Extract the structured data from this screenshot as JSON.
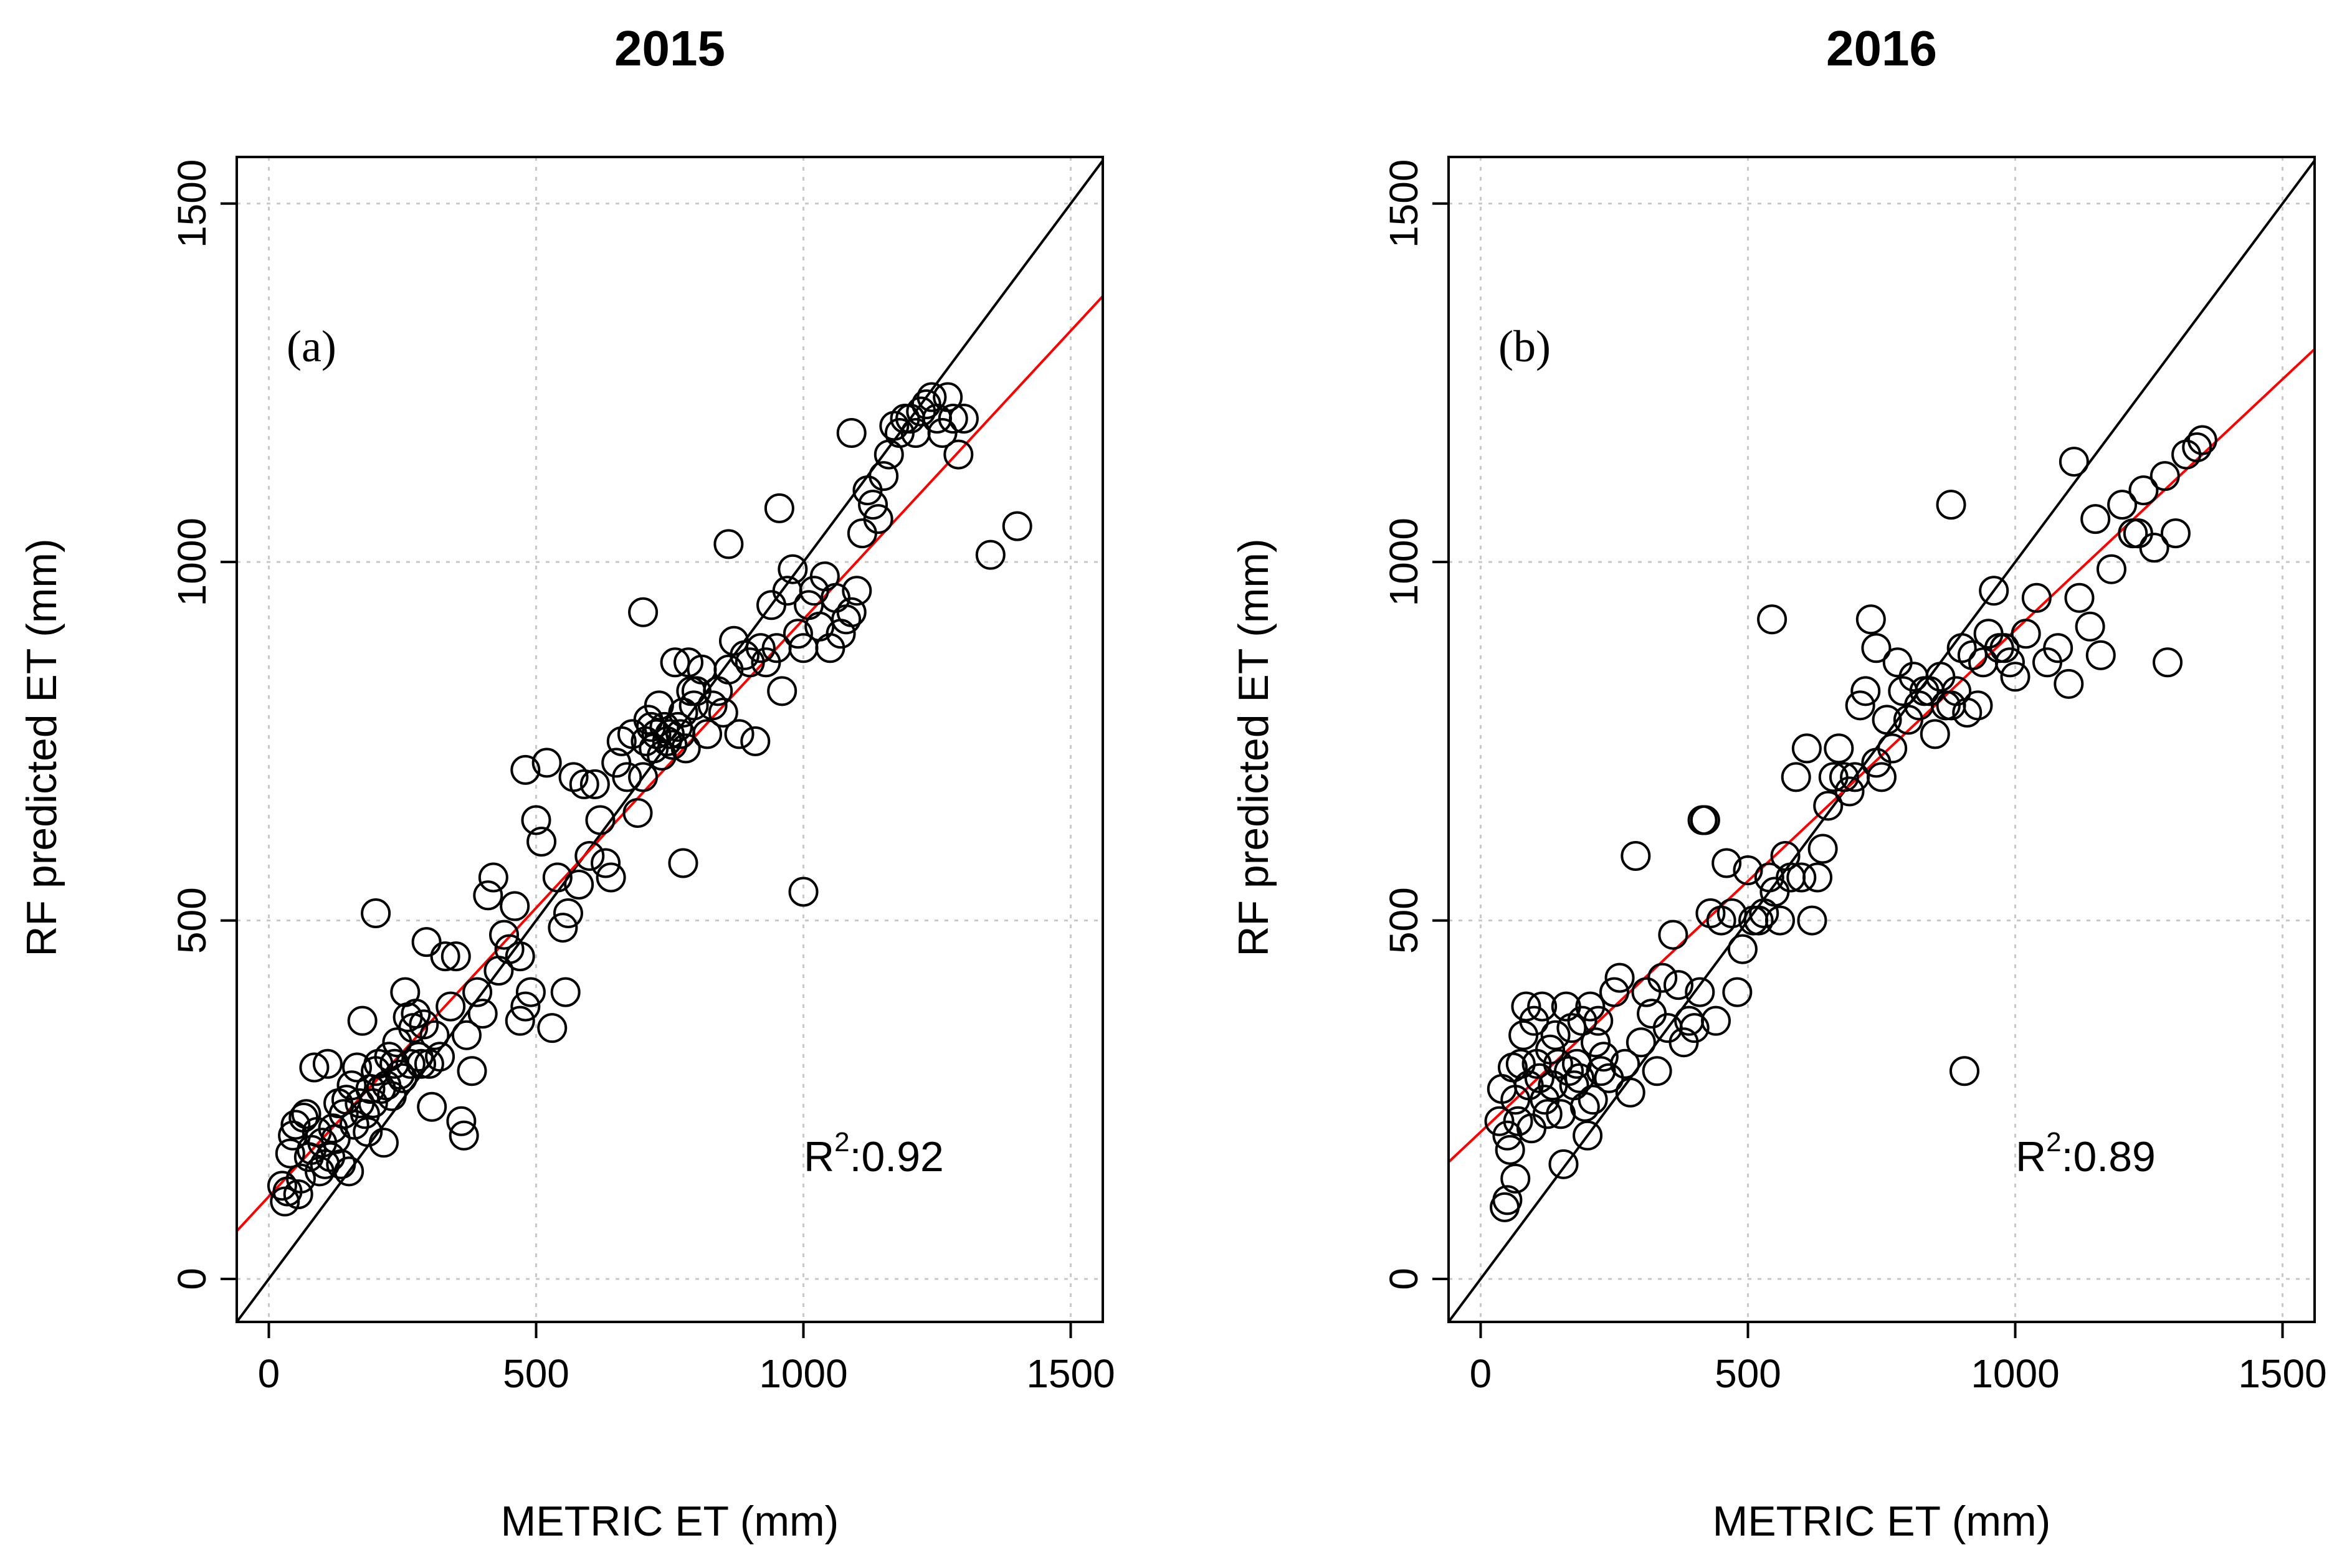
{
  "chart_data": [
    {
      "type": "scatter",
      "panel": "a",
      "title": "2015",
      "label": "(a)",
      "xlabel": "METRIC ET (mm)",
      "ylabel": "RF predicted ET (mm)",
      "xlim": [
        -60,
        1560
      ],
      "ylim": [
        -60,
        1565
      ],
      "xticks": [
        0,
        500,
        1000,
        1500
      ],
      "yticks": [
        0,
        500,
        1000,
        1500
      ],
      "grid": true,
      "annotation": {
        "base": "R",
        "sup": "2",
        "text": ":0.92"
      },
      "fit_line": {
        "name": "regression",
        "color": "#ff0000",
        "intercept": 115,
        "slope": 0.805
      },
      "identity_line": {
        "name": "1:1",
        "color": "#000000"
      },
      "points": {
        "x": [
          25,
          30,
          35,
          40,
          45,
          50,
          55,
          60,
          65,
          70,
          75,
          80,
          85,
          90,
          95,
          100,
          105,
          110,
          115,
          120,
          125,
          130,
          135,
          140,
          145,
          150,
          155,
          160,
          165,
          170,
          175,
          180,
          185,
          190,
          195,
          200,
          205,
          210,
          215,
          220,
          225,
          230,
          235,
          240,
          245,
          250,
          255,
          260,
          265,
          270,
          275,
          280,
          285,
          290,
          295,
          300,
          305,
          310,
          320,
          330,
          340,
          350,
          360,
          370,
          380,
          390,
          400,
          410,
          420,
          430,
          440,
          450,
          460,
          470,
          480,
          490,
          500,
          510,
          520,
          530,
          540,
          550,
          560,
          570,
          580,
          590,
          600,
          610,
          620,
          630,
          640,
          650,
          660,
          670,
          680,
          690,
          700,
          705,
          710,
          715,
          720,
          725,
          730,
          735,
          740,
          745,
          750,
          755,
          760,
          765,
          770,
          775,
          780,
          785,
          790,
          795,
          800,
          810,
          820,
          830,
          840,
          850,
          860,
          870,
          880,
          890,
          900,
          910,
          920,
          930,
          940,
          950,
          960,
          970,
          980,
          990,
          1000,
          1010,
          1020,
          1030,
          1040,
          1050,
          1060,
          1070,
          1080,
          1090,
          1100,
          1110,
          1120,
          1130,
          1140,
          1150,
          1160,
          1170,
          1180,
          1190,
          1200,
          1210,
          1220,
          1230,
          1240,
          1250,
          1260,
          1270,
          1280,
          1290,
          1300,
          1350,
          1400,
          200,
          555,
          955,
          700,
          480,
          860,
          1000,
          775,
          365,
          470,
          1090
        ],
        "y": [
          130,
          108,
          122,
          175,
          200,
          215,
          118,
          140,
          225,
          230,
          170,
          180,
          295,
          205,
          150,
          190,
          160,
          300,
          170,
          210,
          195,
          245,
          160,
          230,
          250,
          150,
          270,
          215,
          295,
          245,
          360,
          230,
          205,
          265,
          245,
          290,
          300,
          265,
          190,
          270,
          310,
          255,
          300,
          330,
          285,
          280,
          400,
          365,
          300,
          350,
          370,
          310,
          300,
          355,
          470,
          300,
          240,
          340,
          310,
          450,
          380,
          450,
          220,
          340,
          290,
          400,
          370,
          535,
          560,
          430,
          480,
          460,
          520,
          450,
          380,
          400,
          640,
          610,
          720,
          350,
          560,
          490,
          510,
          700,
          550,
          690,
          590,
          690,
          640,
          580,
          560,
          720,
          750,
          700,
          760,
          650,
          700,
          750,
          780,
          770,
          740,
          760,
          800,
          730,
          770,
          750,
          760,
          745,
          860,
          770,
          760,
          790,
          740,
          860,
          820,
          800,
          820,
          850,
          760,
          800,
          820,
          790,
          850,
          890,
          760,
          870,
          860,
          750,
          880,
          860,
          940,
          880,
          820,
          960,
          990,
          900,
          880,
          940,
          960,
          910,
          980,
          880,
          950,
          900,
          920,
          930,
          960,
          1040,
          1100,
          1080,
          1060,
          1120,
          1150,
          1190,
          1180,
          1200,
          1200,
          1180,
          1210,
          1220,
          1230,
          1200,
          1180,
          1230,
          1200,
          1150,
          1200,
          1010,
          1050,
          510,
          400,
          1075,
          930,
          710,
          1025,
          540,
          580,
          200,
          360,
          1180
        ]
      }
    },
    {
      "type": "scatter",
      "panel": "b",
      "title": "2016",
      "label": "(b)",
      "xlabel": "METRIC ET (mm)",
      "ylabel": "RF predicted ET (mm)",
      "xlim": [
        -60,
        1560
      ],
      "ylim": [
        -60,
        1565
      ],
      "xticks": [
        0,
        500,
        1000,
        1500
      ],
      "yticks": [
        0,
        500,
        1000,
        1500
      ],
      "grid": true,
      "annotation": {
        "base": "R",
        "sup": "2",
        "text": ":0.89"
      },
      "fit_line": {
        "name": "regression",
        "color": "#ff0000",
        "intercept": 205,
        "slope": 0.7
      },
      "identity_line": {
        "name": "1:1",
        "color": "#000000"
      },
      "points": {
        "x": [
          35,
          40,
          45,
          50,
          55,
          60,
          65,
          70,
          75,
          80,
          85,
          90,
          95,
          100,
          105,
          110,
          115,
          120,
          125,
          130,
          135,
          140,
          145,
          150,
          155,
          160,
          165,
          170,
          175,
          180,
          185,
          190,
          195,
          200,
          205,
          210,
          215,
          220,
          225,
          230,
          240,
          250,
          260,
          270,
          280,
          290,
          300,
          310,
          320,
          330,
          340,
          350,
          360,
          370,
          380,
          390,
          400,
          410,
          420,
          430,
          440,
          450,
          460,
          470,
          480,
          490,
          500,
          510,
          520,
          530,
          540,
          550,
          560,
          570,
          580,
          590,
          600,
          610,
          620,
          630,
          640,
          650,
          660,
          670,
          680,
          690,
          700,
          710,
          720,
          730,
          740,
          750,
          760,
          770,
          780,
          790,
          800,
          810,
          820,
          830,
          840,
          850,
          860,
          870,
          880,
          890,
          900,
          910,
          920,
          930,
          940,
          950,
          960,
          970,
          980,
          990,
          1000,
          1020,
          1040,
          1060,
          1080,
          1100,
          1120,
          1140,
          1160,
          1180,
          1200,
          1220,
          1240,
          1260,
          1280,
          1300,
          1320,
          1340,
          1350,
          1110,
          905,
          880,
          545,
          415,
          740,
          1230,
          1285,
          1150,
          65,
          50
        ],
        "y": [
          220,
          265,
          100,
          200,
          180,
          295,
          250,
          220,
          300,
          340,
          380,
          270,
          210,
          360,
          300,
          280,
          380,
          250,
          230,
          320,
          270,
          340,
          300,
          230,
          160,
          380,
          290,
          350,
          270,
          300,
          280,
          360,
          240,
          200,
          380,
          250,
          330,
          360,
          290,
          310,
          280,
          400,
          420,
          300,
          260,
          590,
          330,
          400,
          370,
          290,
          420,
          350,
          480,
          410,
          330,
          360,
          350,
          400,
          640,
          510,
          360,
          500,
          580,
          510,
          400,
          460,
          570,
          500,
          500,
          510,
          560,
          540,
          500,
          590,
          560,
          700,
          560,
          740,
          500,
          560,
          600,
          660,
          700,
          740,
          700,
          680,
          700,
          800,
          820,
          920,
          720,
          700,
          780,
          740,
          860,
          820,
          780,
          840,
          800,
          820,
          820,
          760,
          840,
          800,
          800,
          820,
          880,
          790,
          870,
          800,
          860,
          900,
          960,
          880,
          880,
          860,
          840,
          900,
          950,
          860,
          880,
          830,
          950,
          910,
          870,
          990,
          1080,
          1040,
          1100,
          1020,
          1120,
          1040,
          1150,
          1160,
          1170,
          1140,
          290,
          1080,
          920,
          640,
          880,
          1040,
          860,
          1060,
          140,
          110
        ]
      }
    }
  ]
}
